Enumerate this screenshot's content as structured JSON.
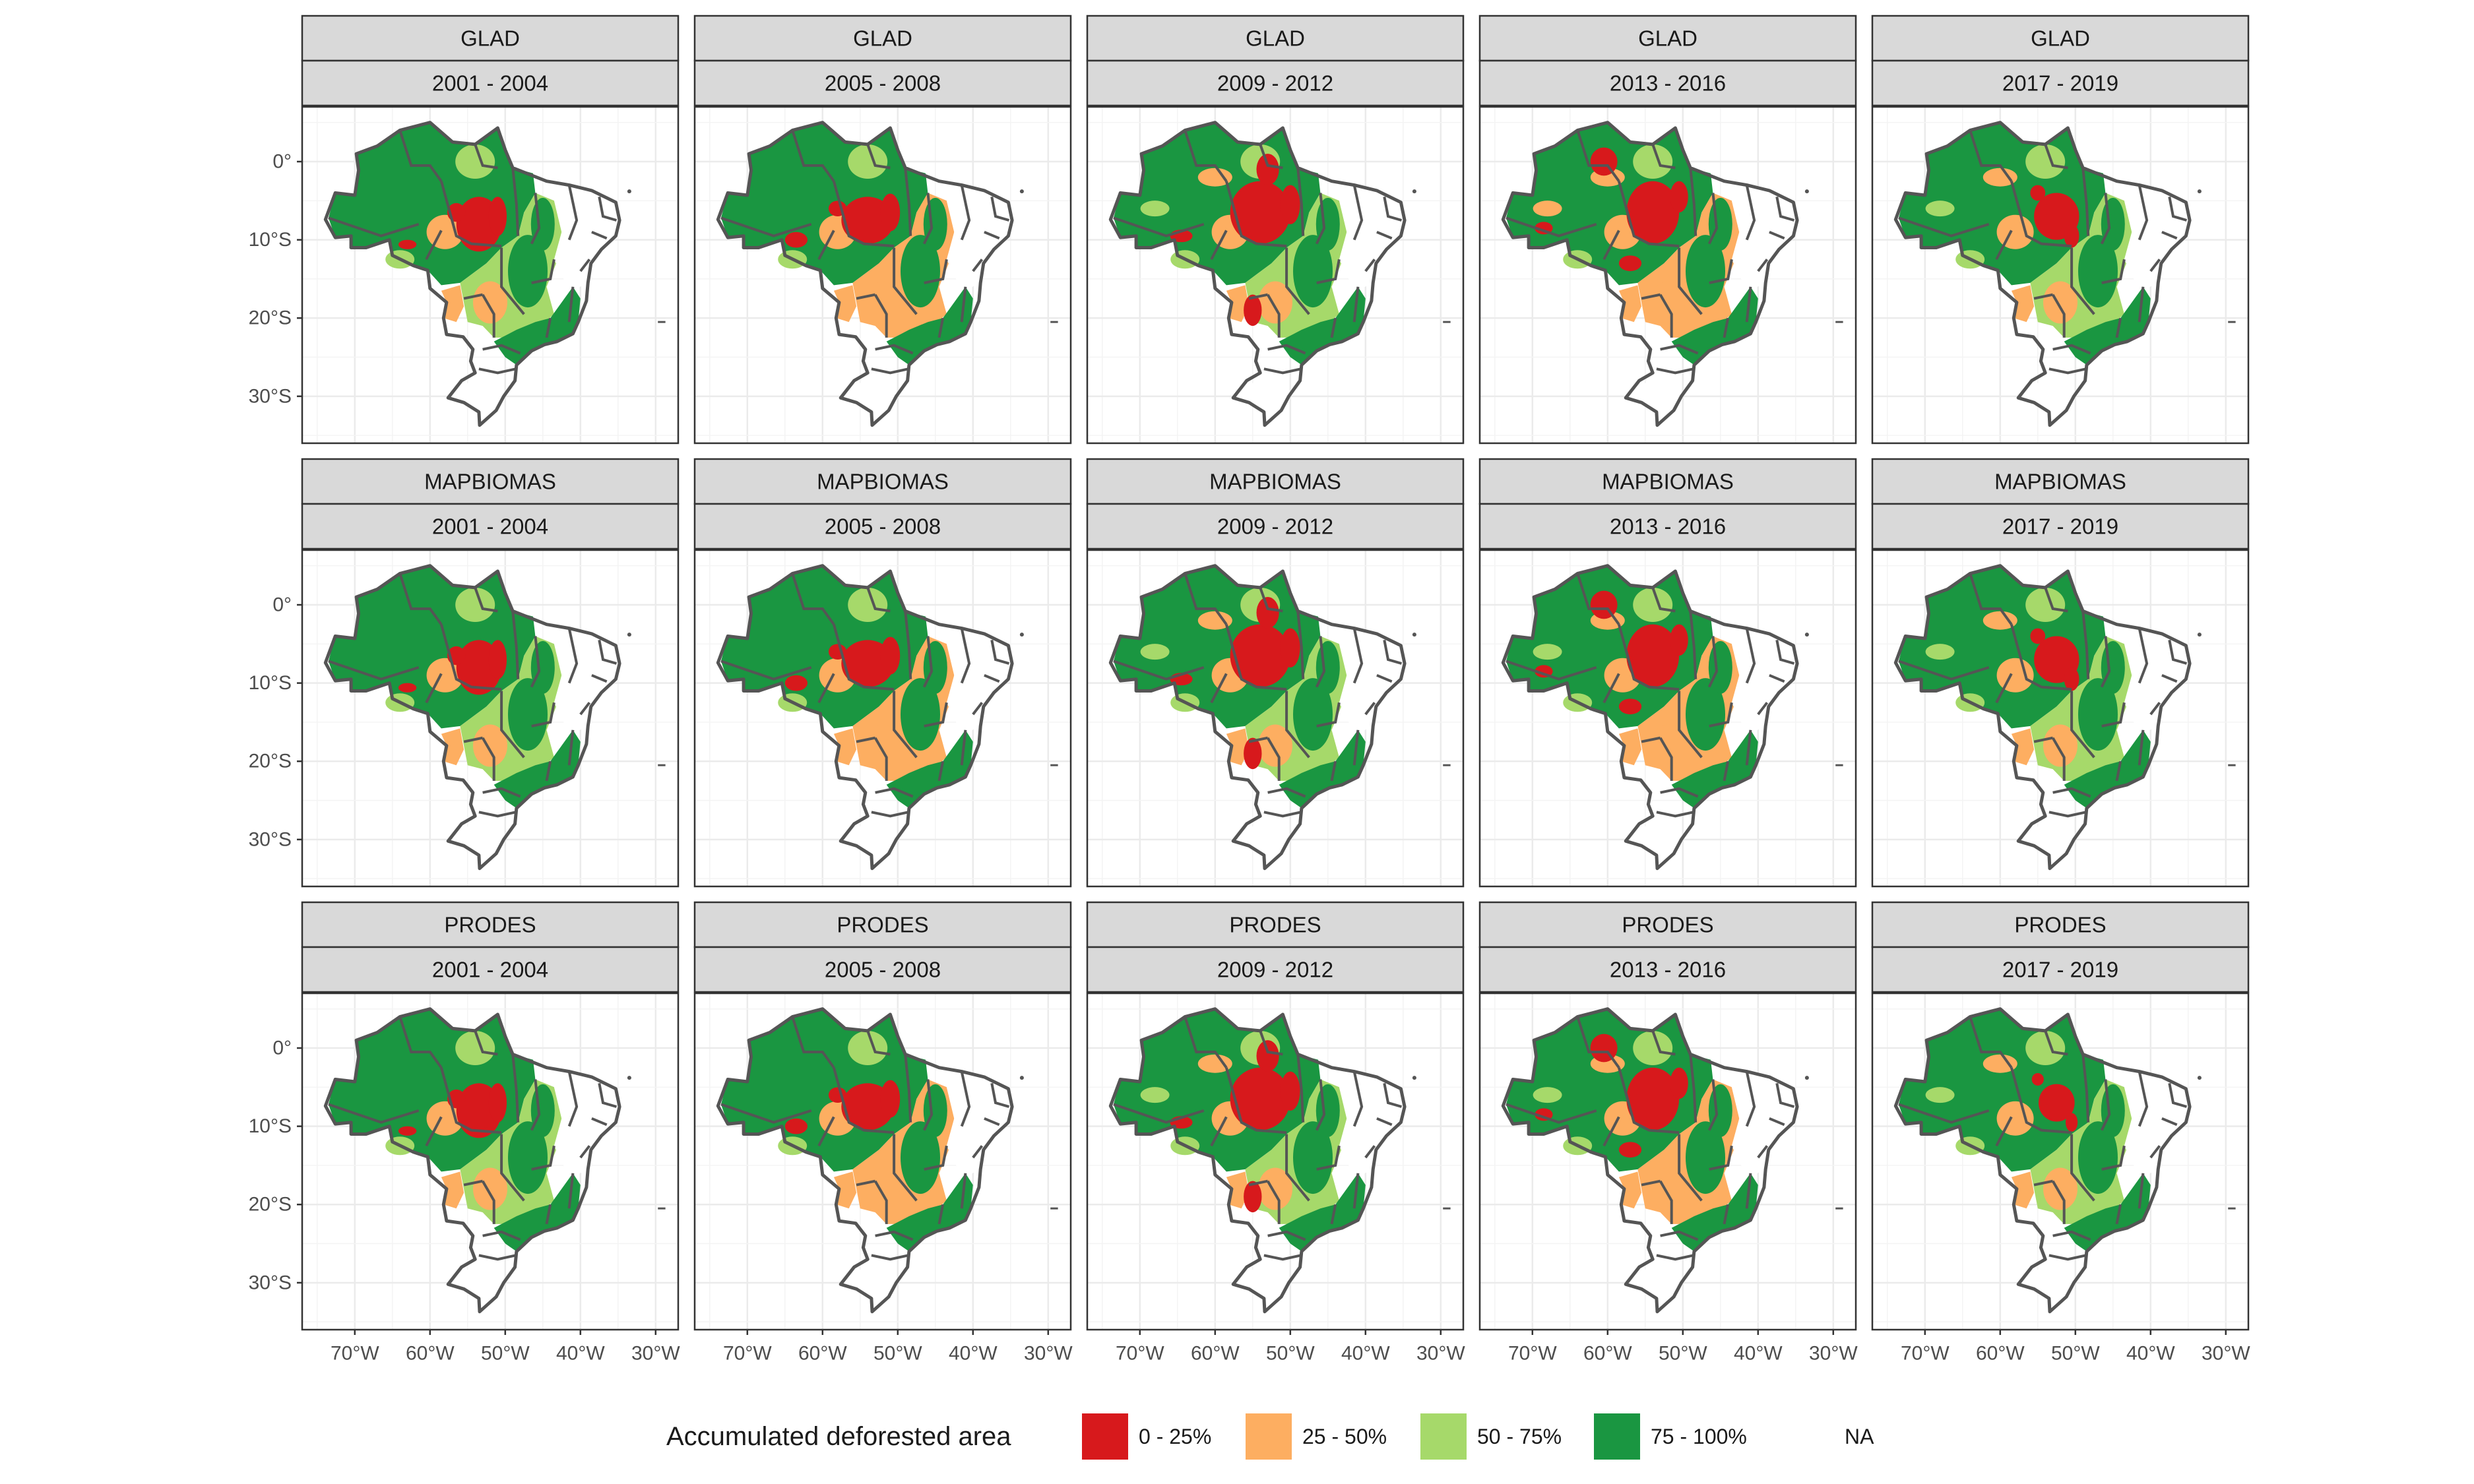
{
  "chart_data": {
    "type": "choropleth-facet-grid",
    "rows": [
      "GLAD",
      "MAPBIOMAS",
      "PRODES"
    ],
    "columns": [
      "2001 - 2004",
      "2005 - 2008",
      "2009 - 2012",
      "2013 - 2016",
      "2017 - 2019"
    ],
    "x_axis": {
      "ticks": [
        -70,
        -60,
        -50,
        -40,
        -30
      ],
      "tick_labels": [
        "70°W",
        "60°W",
        "50°W",
        "40°W",
        "30°W"
      ],
      "range": [
        -77,
        -27
      ]
    },
    "y_axis": {
      "ticks": [
        0,
        -10,
        -20,
        -30
      ],
      "tick_labels": [
        "0°",
        "10°S",
        "20°S",
        "30°S"
      ],
      "range": [
        -36,
        7
      ]
    },
    "grid": true,
    "legend": {
      "position": "bottom",
      "title": "Accumulated deforested area",
      "items": [
        {
          "label": "0 - 25%",
          "color": "#d7191c"
        },
        {
          "label": "25 - 50%",
          "color": "#fdae61"
        },
        {
          "label": "50 - 75%",
          "color": "#a6d96a"
        },
        {
          "label": "75 - 100%",
          "color": "#1a9641"
        },
        {
          "label": "NA",
          "color": "#ffffff"
        }
      ]
    }
  }
}
